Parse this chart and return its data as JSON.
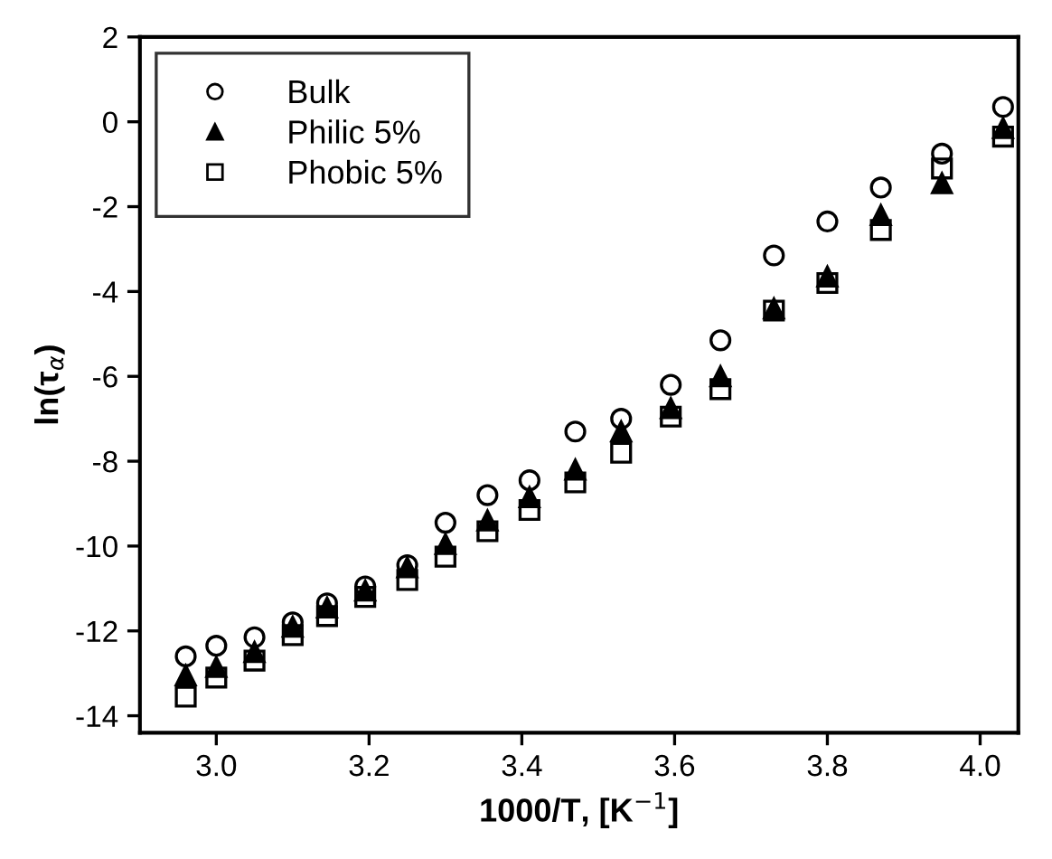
{
  "chart_data": {
    "type": "scatter",
    "xlabel": "1000/T, [K$^{−1}$]",
    "ylabel": "ln(τ$_{α}$)",
    "x": [
      2.96,
      3.0,
      3.05,
      3.1,
      3.145,
      3.195,
      3.25,
      3.3,
      3.355,
      3.41,
      3.47,
      3.53,
      3.595,
      3.66,
      3.73,
      3.8,
      3.87,
      3.95,
      4.03
    ],
    "series": [
      {
        "name": "Bulk",
        "color": "#000000",
        "marker": "circle",
        "values": [
          -12.6,
          -12.35,
          -12.15,
          -11.8,
          -11.35,
          -10.95,
          -10.45,
          -9.45,
          -8.8,
          -8.45,
          -7.3,
          -7.0,
          -6.2,
          -5.15,
          -3.15,
          -2.35,
          -1.55,
          -0.75,
          0.35
        ]
      },
      {
        "name": "Philic 5%",
        "color": "#000000",
        "marker": "triangle",
        "values": [
          -13.05,
          -12.85,
          -12.5,
          -11.9,
          -11.45,
          -11.05,
          -10.5,
          -9.95,
          -9.4,
          -8.85,
          -8.2,
          -7.3,
          -6.75,
          -6.0,
          -4.4,
          -3.65,
          -2.2,
          -1.45,
          -0.15
        ]
      },
      {
        "name": "Phobic 5%",
        "color": "#000000",
        "marker": "square",
        "values": [
          -13.55,
          -13.1,
          -12.7,
          -12.1,
          -11.65,
          -11.2,
          -10.8,
          -10.25,
          -9.65,
          -9.15,
          -8.5,
          -7.8,
          -6.95,
          -6.3,
          -4.45,
          -3.8,
          -2.55,
          -1.1,
          -0.35
        ]
      }
    ],
    "xlim": [
      2.9,
      4.05
    ],
    "xticks": [
      {
        "value": 3.0,
        "label": "3.0"
      },
      3.2,
      3.4,
      3.6,
      3.8,
      {
        "value": 4.0,
        "label": "4.0"
      }
    ],
    "ylim": [
      -14.4,
      2
    ],
    "yticks": [
      {
        "value": -14,
        "label": "-14"
      },
      {
        "value": -12,
        "label": "-12"
      },
      {
        "value": -10,
        "label": "-10"
      },
      {
        "value": -8,
        "label": "-8"
      },
      {
        "value": -6,
        "label": "-6"
      },
      {
        "value": -4,
        "label": "-4"
      },
      {
        "value": -2,
        "label": "-2"
      },
      0,
      2
    ],
    "grid": false,
    "legend": "top left"
  }
}
